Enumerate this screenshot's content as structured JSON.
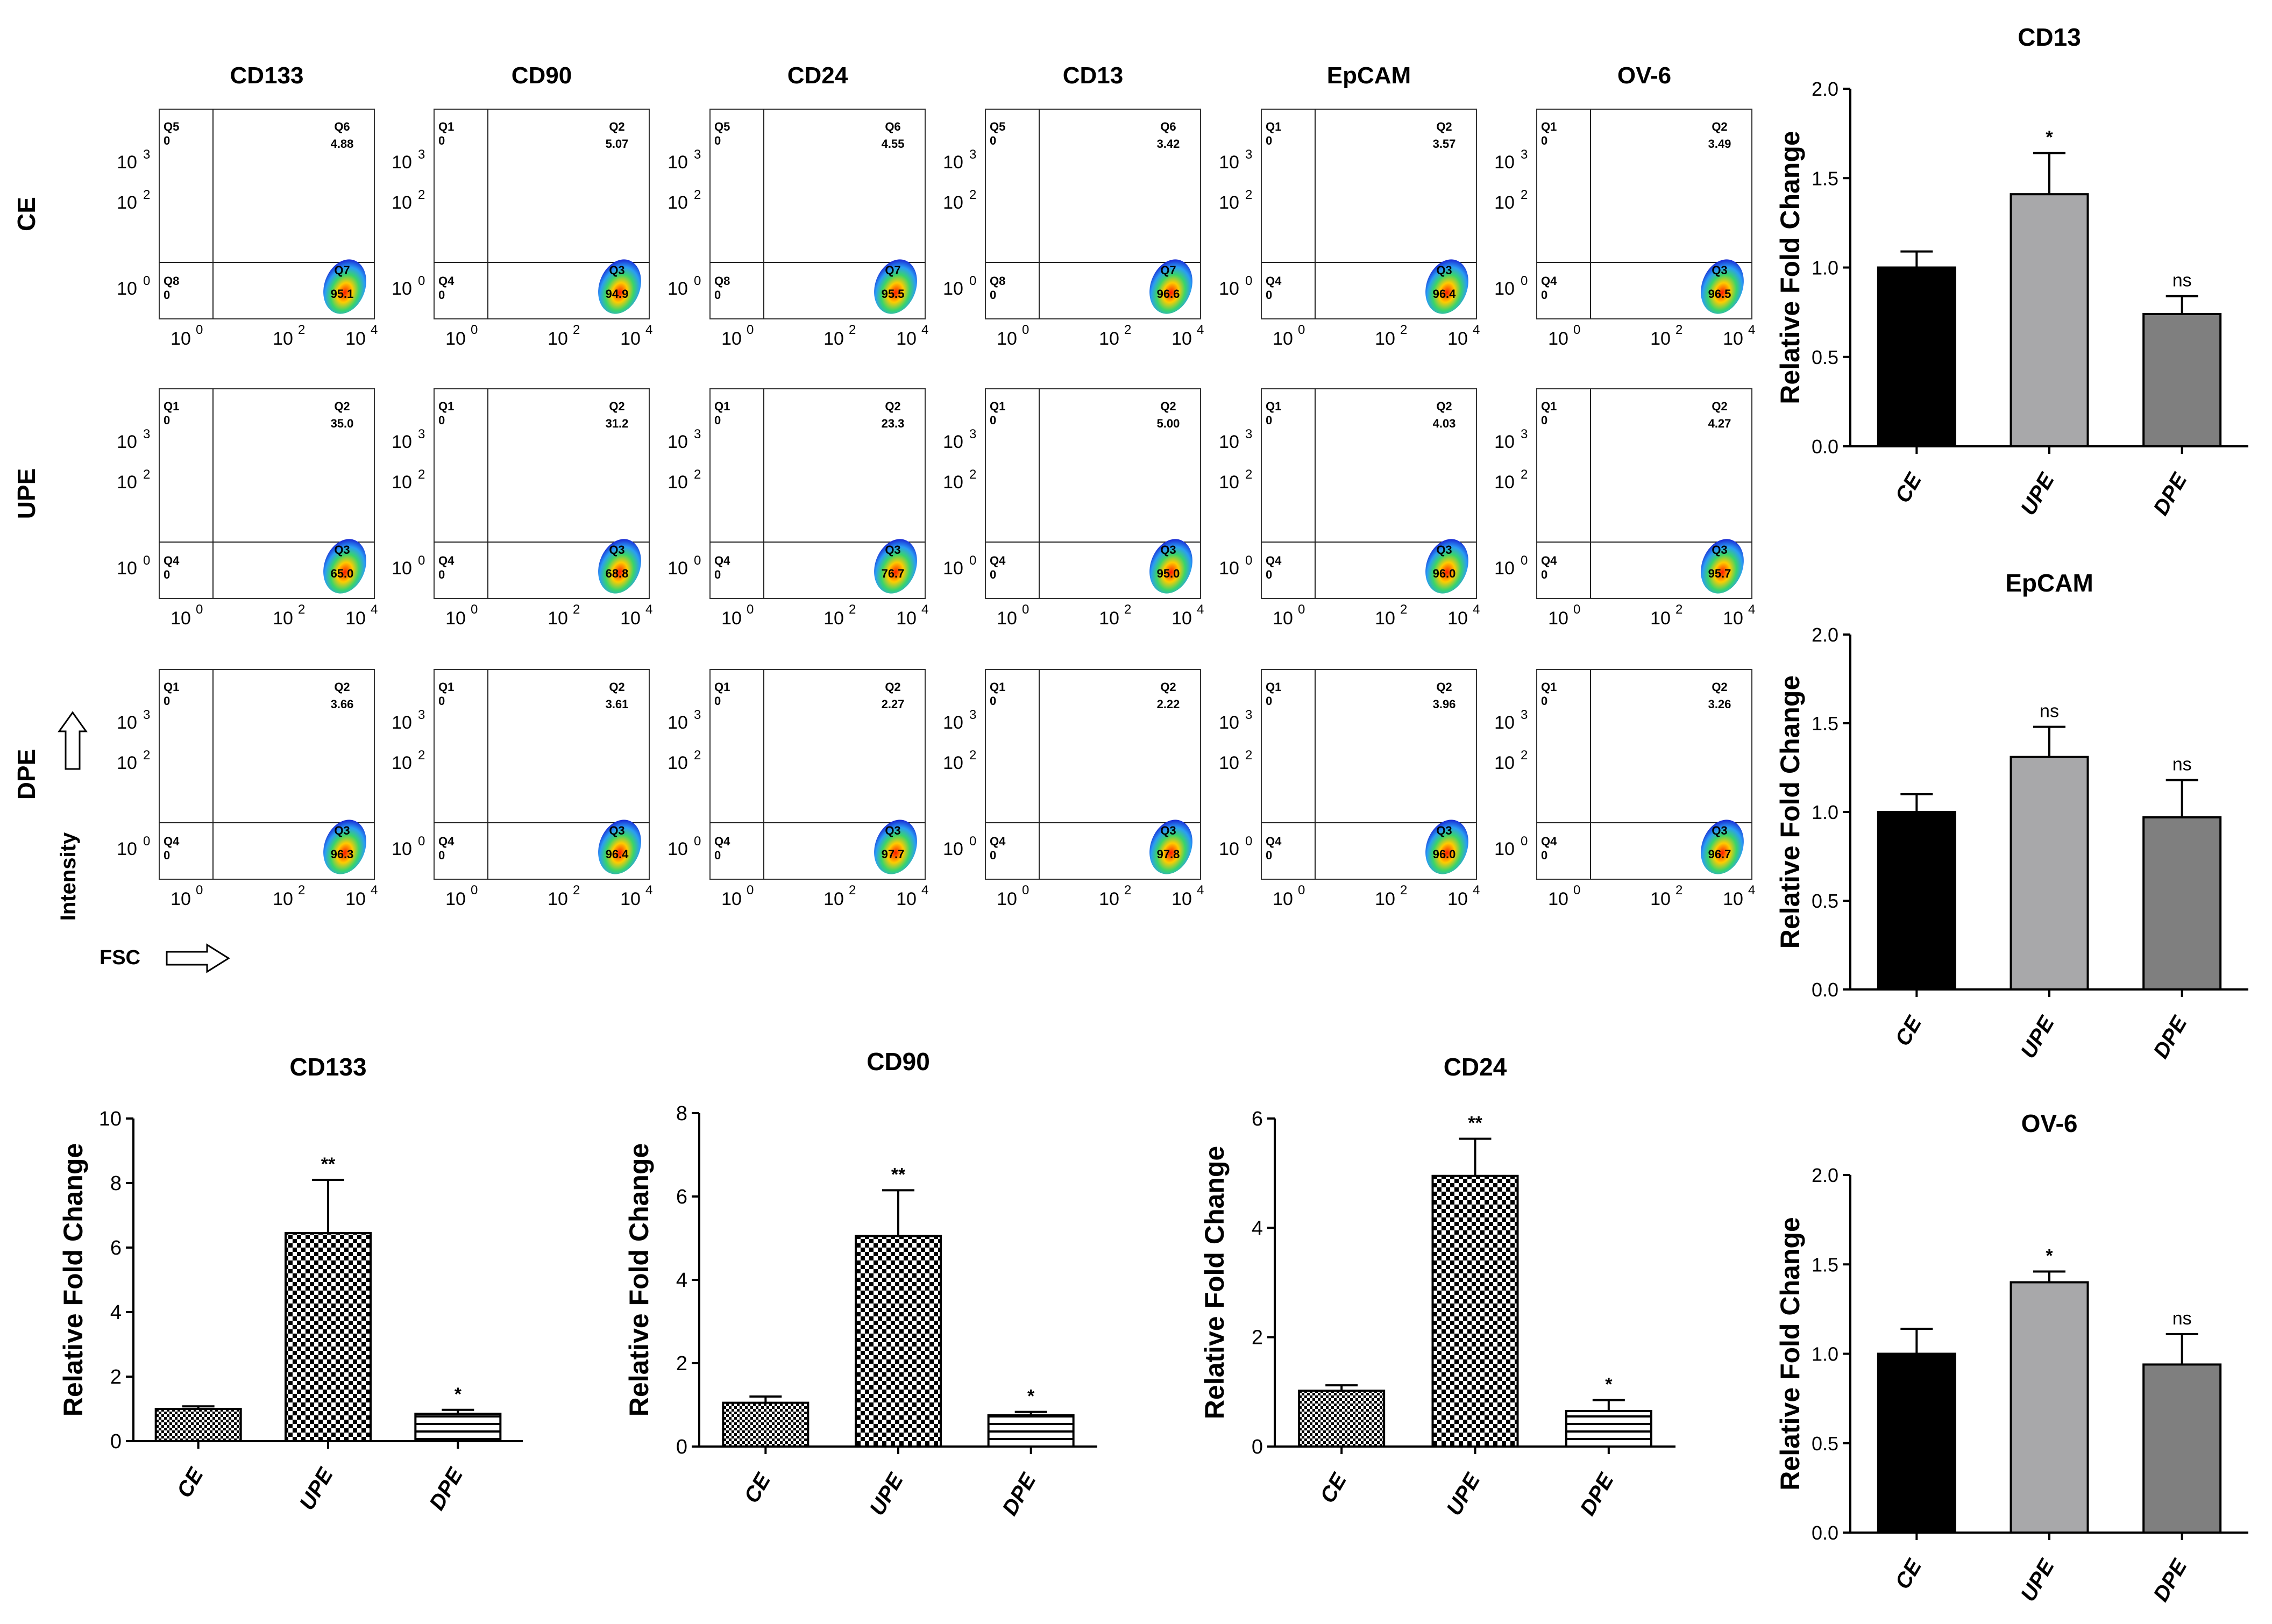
{
  "flow": {
    "markers": [
      "CD133",
      "CD90",
      "CD24",
      "CD13",
      "EpCAM",
      "OV-6"
    ],
    "rows": [
      {
        "label": "CE",
        "cells": [
          {
            "tl": "Q5",
            "tl_val": "0",
            "tr": "Q6",
            "tr_val": "4.88",
            "bl": "Q8",
            "bl_val": "0",
            "br": "Q7",
            "br_val": "95.1"
          },
          {
            "tl": "Q1",
            "tl_val": "0",
            "tr": "Q2",
            "tr_val": "5.07",
            "bl": "Q4",
            "bl_val": "0",
            "br": "Q3",
            "br_val": "94.9"
          },
          {
            "tl": "Q5",
            "tl_val": "0",
            "tr": "Q6",
            "tr_val": "4.55",
            "bl": "Q8",
            "bl_val": "0",
            "br": "Q7",
            "br_val": "95.5"
          },
          {
            "tl": "Q5",
            "tl_val": "0",
            "tr": "Q6",
            "tr_val": "3.42",
            "bl": "Q8",
            "bl_val": "0",
            "br": "Q7",
            "br_val": "96.6"
          },
          {
            "tl": "Q1",
            "tl_val": "0",
            "tr": "Q2",
            "tr_val": "3.57",
            "bl": "Q4",
            "bl_val": "0",
            "br": "Q3",
            "br_val": "96.4"
          },
          {
            "tl": "Q1",
            "tl_val": "0",
            "tr": "Q2",
            "tr_val": "3.49",
            "bl": "Q4",
            "bl_val": "0",
            "br": "Q3",
            "br_val": "96.5"
          }
        ]
      },
      {
        "label": "UPE",
        "cells": [
          {
            "tl": "Q1",
            "tl_val": "0",
            "tr": "Q2",
            "tr_val": "35.0",
            "bl": "Q4",
            "bl_val": "0",
            "br": "Q3",
            "br_val": "65.0"
          },
          {
            "tl": "Q1",
            "tl_val": "0",
            "tr": "Q2",
            "tr_val": "31.2",
            "bl": "Q4",
            "bl_val": "0",
            "br": "Q3",
            "br_val": "68.8"
          },
          {
            "tl": "Q1",
            "tl_val": "0",
            "tr": "Q2",
            "tr_val": "23.3",
            "bl": "Q4",
            "bl_val": "0",
            "br": "Q3",
            "br_val": "76.7"
          },
          {
            "tl": "Q1",
            "tl_val": "0",
            "tr": "Q2",
            "tr_val": "5.00",
            "bl": "Q4",
            "bl_val": "0",
            "br": "Q3",
            "br_val": "95.0"
          },
          {
            "tl": "Q1",
            "tl_val": "0",
            "tr": "Q2",
            "tr_val": "4.03",
            "bl": "Q4",
            "bl_val": "0",
            "br": "Q3",
            "br_val": "96.0"
          },
          {
            "tl": "Q1",
            "tl_val": "0",
            "tr": "Q2",
            "tr_val": "4.27",
            "bl": "Q4",
            "bl_val": "0",
            "br": "Q3",
            "br_val": "95.7"
          }
        ]
      },
      {
        "label": "DPE",
        "cells": [
          {
            "tl": "Q1",
            "tl_val": "0",
            "tr": "Q2",
            "tr_val": "3.66",
            "bl": "Q4",
            "bl_val": "0",
            "br": "Q3",
            "br_val": "96.3"
          },
          {
            "tl": "Q1",
            "tl_val": "0",
            "tr": "Q2",
            "tr_val": "3.61",
            "bl": "Q4",
            "bl_val": "0",
            "br": "Q3",
            "br_val": "96.4"
          },
          {
            "tl": "Q1",
            "tl_val": "0",
            "tr": "Q2",
            "tr_val": "2.27",
            "bl": "Q4",
            "bl_val": "0",
            "br": "Q3",
            "br_val": "97.7"
          },
          {
            "tl": "Q1",
            "tl_val": "0",
            "tr": "Q2",
            "tr_val": "2.22",
            "bl": "Q4",
            "bl_val": "0",
            "br": "Q3",
            "br_val": "97.8"
          },
          {
            "tl": "Q1",
            "tl_val": "0",
            "tr": "Q2",
            "tr_val": "3.96",
            "bl": "Q4",
            "bl_val": "0",
            "br": "Q3",
            "br_val": "96.0"
          },
          {
            "tl": "Q1",
            "tl_val": "0",
            "tr": "Q2",
            "tr_val": "3.26",
            "bl": "Q4",
            "bl_val": "0",
            "br": "Q3",
            "br_val": "96.7"
          }
        ]
      }
    ],
    "y_ticks": [
      {
        "base": "10",
        "exp": "3"
      },
      {
        "base": "10",
        "exp": "2"
      },
      {
        "base": "10",
        "exp": "0"
      }
    ],
    "x_ticks": [
      {
        "base": "10",
        "exp": "0"
      },
      {
        "base": "10",
        "exp": "2"
      },
      {
        "base": "10",
        "exp": "4"
      }
    ],
    "intensity_label": "Intensity",
    "fsc_label": "FSC"
  },
  "chart_data": [
    {
      "type": "bar",
      "title": "CD133",
      "categories": [
        "CE",
        "UPE",
        "DPE"
      ],
      "values": [
        1.0,
        6.45,
        0.85
      ],
      "errors": [
        0.08,
        1.65,
        0.12
      ],
      "significance": [
        "",
        "**",
        "*"
      ],
      "ylabel": "Relative Fold Change",
      "ylim": [
        0,
        10
      ],
      "yticks": [
        0,
        2,
        4,
        6,
        8,
        10
      ],
      "ytick_labels": [
        "0",
        "2",
        "4",
        "6",
        "8",
        "10"
      ],
      "fills": [
        "checker-small",
        "checker",
        "stripes"
      ]
    },
    {
      "type": "bar",
      "title": "CD90",
      "categories": [
        "CE",
        "UPE",
        "DPE"
      ],
      "values": [
        1.05,
        5.05,
        0.75
      ],
      "errors": [
        0.15,
        1.1,
        0.08
      ],
      "significance": [
        "",
        "**",
        "*"
      ],
      "ylabel": "Relative Fold Change",
      "ylim": [
        0,
        8
      ],
      "yticks": [
        0,
        2,
        4,
        6,
        8
      ],
      "ytick_labels": [
        "0",
        "2",
        "4",
        "6",
        "8"
      ],
      "fills": [
        "checker-small",
        "checker",
        "stripes"
      ]
    },
    {
      "type": "bar",
      "title": "CD24",
      "categories": [
        "CE",
        "UPE",
        "DPE"
      ],
      "values": [
        1.02,
        4.95,
        0.65
      ],
      "errors": [
        0.1,
        0.68,
        0.2
      ],
      "significance": [
        "",
        "**",
        "*"
      ],
      "ylabel": "Relative Fold Change",
      "ylim": [
        0,
        6
      ],
      "yticks": [
        0,
        2,
        4,
        6
      ],
      "ytick_labels": [
        "0",
        "2",
        "4",
        "6"
      ],
      "fills": [
        "checker-small",
        "checker",
        "stripes"
      ]
    },
    {
      "type": "bar",
      "title": "CD13",
      "categories": [
        "CE",
        "UPE",
        "DPE"
      ],
      "values": [
        1.0,
        1.41,
        0.74
      ],
      "errors": [
        0.09,
        0.23,
        0.1
      ],
      "significance": [
        "",
        "*",
        "ns"
      ],
      "ylabel": "Relative Fold Change",
      "ylim": [
        0,
        2.0
      ],
      "yticks": [
        0,
        0.5,
        1.0,
        1.5,
        2.0
      ],
      "ytick_labels": [
        "0.0",
        "0.5",
        "1.0",
        "1.5",
        "2.0"
      ],
      "fills": [
        "#000000",
        "#a8a8aa",
        "#7f7f7f"
      ]
    },
    {
      "type": "bar",
      "title": "EpCAM",
      "categories": [
        "CE",
        "UPE",
        "DPE"
      ],
      "values": [
        1.0,
        1.31,
        0.97
      ],
      "errors": [
        0.1,
        0.17,
        0.21
      ],
      "significance": [
        "",
        "ns",
        "ns"
      ],
      "ylabel": "Relative Fold Change",
      "ylim": [
        0,
        2.0
      ],
      "yticks": [
        0,
        0.5,
        1.0,
        1.5,
        2.0
      ],
      "ytick_labels": [
        "0.0",
        "0.5",
        "1.0",
        "1.5",
        "2.0"
      ],
      "fills": [
        "#000000",
        "#a8a8aa",
        "#7f7f7f"
      ]
    },
    {
      "type": "bar",
      "title": "OV-6",
      "categories": [
        "CE",
        "UPE",
        "DPE"
      ],
      "values": [
        1.0,
        1.4,
        0.94
      ],
      "errors": [
        0.14,
        0.06,
        0.17
      ],
      "significance": [
        "",
        "*",
        "ns"
      ],
      "ylabel": "Relative Fold Change",
      "ylim": [
        0,
        2.0
      ],
      "yticks": [
        0,
        0.5,
        1.0,
        1.5,
        2.0
      ],
      "ytick_labels": [
        "0.0",
        "0.5",
        "1.0",
        "1.5",
        "2.0"
      ],
      "fills": [
        "#000000",
        "#a8a8aa",
        "#7f7f7f"
      ]
    }
  ]
}
